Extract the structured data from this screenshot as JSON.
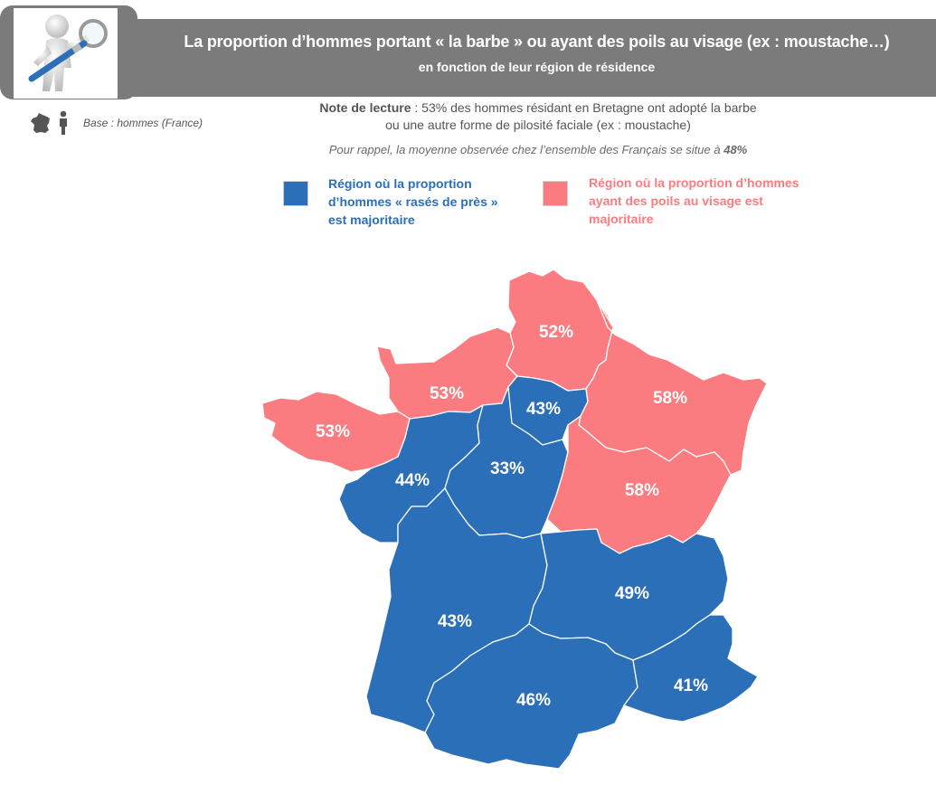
{
  "header": {
    "title": "La proportion d’hommes portant « la barbe » ou ayant des poils au visage (ex : moustache…)",
    "subtitle": "en fonction de leur région de résidence",
    "logo_icon": "man-with-magnifying-glass-icon"
  },
  "base": {
    "text": "Base : hommes (France)",
    "icons": [
      "france-map-icon",
      "person-icon"
    ]
  },
  "note": {
    "label": "Note de lecture",
    "line1": " : 53% des hommes résidant en Bretagne ont adopté la barbe",
    "line2": "ou une autre forme de pilosité faciale (ex : moustache)",
    "reminder_prefix": "Pour rappel, la moyenne observée chez l’ensemble des Français se situe à ",
    "reminder_value": "48%"
  },
  "legend": {
    "shaved": {
      "line1": "Région où la proportion",
      "line2": "d’hommes « rasés de près »",
      "line3": "est majoritaire",
      "color": "#2a6fb7"
    },
    "bearded": {
      "line1": "Région où la proportion d’hommes",
      "line2": "ayant des poils au visage est",
      "line3": "majoritaire",
      "color": "#fb7c80"
    }
  },
  "colors": {
    "blue": "#2a6fb7",
    "pink": "#fb7c80",
    "banner": "#7b7b7b"
  },
  "regions": [
    {
      "name": "Hauts-de-France",
      "value": "52%",
      "category": "bearded"
    },
    {
      "name": "Normandie",
      "value": "53%",
      "category": "bearded"
    },
    {
      "name": "Bretagne",
      "value": "53%",
      "category": "bearded"
    },
    {
      "name": "Île-de-France",
      "value": "43%",
      "category": "shaved"
    },
    {
      "name": "Grand Est",
      "value": "58%",
      "category": "bearded"
    },
    {
      "name": "Pays de la Loire",
      "value": "44%",
      "category": "shaved"
    },
    {
      "name": "Centre-Val de Loire",
      "value": "33%",
      "category": "shaved"
    },
    {
      "name": "Bourgogne-Franche-Comté",
      "value": "58%",
      "category": "bearded"
    },
    {
      "name": "Nouvelle-Aquitaine",
      "value": "43%",
      "category": "shaved"
    },
    {
      "name": "Auvergne-Rhône-Alpes",
      "value": "49%",
      "category": "shaved"
    },
    {
      "name": "Occitanie",
      "value": "46%",
      "category": "shaved"
    },
    {
      "name": "Provence-Alpes-Côte d’Azur",
      "value": "41%",
      "category": "shaved"
    }
  ]
}
